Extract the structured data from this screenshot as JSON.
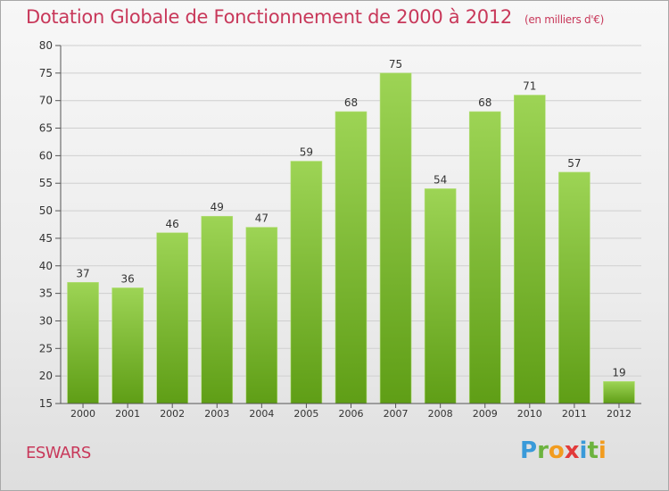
{
  "title": "Dotation Globale de Fonctionnement de 2000 à 2012",
  "subtitle": "(en milliers d'€)",
  "commune": "ESWARS",
  "logo": {
    "letters": [
      "P",
      "r",
      "o",
      "x",
      "i",
      "t",
      "i"
    ],
    "colors": [
      "#3a9ad9",
      "#6cb33e",
      "#f29c1f",
      "#e23a3a",
      "#3a9ad9",
      "#6cb33e",
      "#f29c1f"
    ]
  },
  "colors": {
    "bar_top": "#9dd455",
    "bar_bottom": "#5f9e16",
    "accent": "#c8385a"
  },
  "chart_data": {
    "type": "bar",
    "categories": [
      "2000",
      "2001",
      "2002",
      "2003",
      "2004",
      "2005",
      "2006",
      "2007",
      "2008",
      "2009",
      "2010",
      "2011",
      "2012"
    ],
    "values": [
      37,
      36,
      46,
      49,
      47,
      59,
      68,
      75,
      54,
      68,
      71,
      57,
      19
    ],
    "ylim": [
      15,
      80
    ],
    "yticks": [
      15,
      20,
      25,
      30,
      35,
      40,
      45,
      50,
      55,
      60,
      65,
      70,
      75,
      80
    ],
    "grid": true,
    "xlabel": "",
    "ylabel": ""
  }
}
